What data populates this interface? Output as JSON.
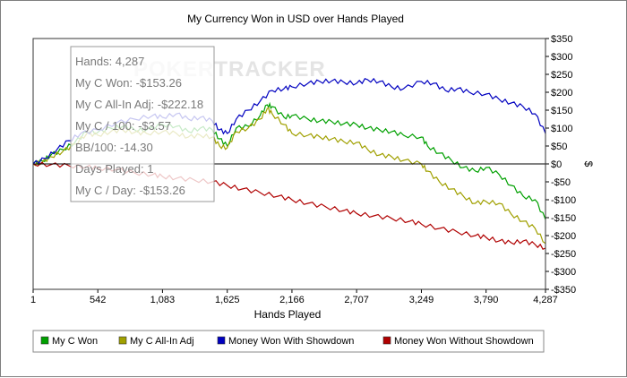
{
  "chart_data": {
    "type": "line",
    "title": "My Currency Won in USD over Hands Played",
    "xlabel": "Hands Played",
    "ylabel": "$",
    "xlim": [
      1,
      4287
    ],
    "ylim": [
      -350,
      350
    ],
    "x_ticks": [
      "1",
      "542",
      "1,083",
      "1,625",
      "2,166",
      "2,707",
      "3,249",
      "3,790",
      "4,287"
    ],
    "x_tick_values": [
      1,
      542,
      1083,
      1625,
      2166,
      2707,
      3249,
      3790,
      4287
    ],
    "y_ticks": [
      "$350",
      "$300",
      "$250",
      "$200",
      "$150",
      "$100",
      "$50",
      "$0",
      "-$50",
      "-$100",
      "-$150",
      "-$200",
      "-$250",
      "-$300",
      "-$350"
    ],
    "y_tick_values": [
      350,
      300,
      250,
      200,
      150,
      100,
      50,
      0,
      -50,
      -100,
      -150,
      -200,
      -250,
      -300,
      -350
    ],
    "grid": false,
    "legend_position": "bottom",
    "watermark": "POKERTRACKER",
    "series": [
      {
        "name": "My C Won",
        "color": "#00a000",
        "x": [
          1,
          80,
          150,
          250,
          350,
          450,
          542,
          650,
          750,
          850,
          950,
          1083,
          1200,
          1300,
          1400,
          1500,
          1560,
          1625,
          1700,
          1800,
          1900,
          1960,
          2000,
          2100,
          2166,
          2300,
          2400,
          2500,
          2600,
          2707,
          2800,
          2900,
          3000,
          3100,
          3249,
          3300,
          3400,
          3500,
          3600,
          3700,
          3790,
          3900,
          4000,
          4100,
          4200,
          4287
        ],
        "y": [
          0,
          8,
          25,
          40,
          60,
          90,
          88,
          100,
          105,
          95,
          95,
          110,
          105,
          90,
          100,
          95,
          70,
          50,
          100,
          105,
          135,
          165,
          160,
          130,
          135,
          125,
          120,
          118,
          112,
          110,
          100,
          95,
          90,
          80,
          75,
          50,
          30,
          10,
          -10,
          -20,
          -10,
          -30,
          -60,
          -90,
          -100,
          -155
        ]
      },
      {
        "name": "My C All-In Adj",
        "color": "#a0a000",
        "x": [
          1,
          80,
          150,
          250,
          350,
          450,
          542,
          650,
          750,
          850,
          950,
          1083,
          1200,
          1300,
          1400,
          1500,
          1560,
          1625,
          1700,
          1800,
          1900,
          1960,
          2000,
          2100,
          2166,
          2300,
          2400,
          2500,
          2600,
          2707,
          2800,
          2900,
          3000,
          3100,
          3249,
          3300,
          3400,
          3500,
          3600,
          3700,
          3790,
          3900,
          4000,
          4100,
          4200,
          4287
        ],
        "y": [
          0,
          5,
          20,
          35,
          55,
          85,
          80,
          90,
          95,
          88,
          85,
          90,
          85,
          75,
          80,
          75,
          50,
          45,
          90,
          100,
          125,
          155,
          140,
          110,
          85,
          80,
          75,
          70,
          62,
          60,
          40,
          25,
          20,
          10,
          0,
          -20,
          -50,
          -70,
          -90,
          -110,
          -105,
          -110,
          -140,
          -160,
          -180,
          -222
        ]
      },
      {
        "name": "Money Won With Showdown",
        "color": "#0000c0",
        "x": [
          1,
          100,
          200,
          300,
          400,
          542,
          700,
          850,
          1000,
          1083,
          1200,
          1300,
          1400,
          1500,
          1560,
          1625,
          1700,
          1800,
          1900,
          2000,
          2100,
          2166,
          2300,
          2400,
          2500,
          2600,
          2707,
          2800,
          2900,
          3000,
          3100,
          3249,
          3350,
          3450,
          3550,
          3650,
          3790,
          3900,
          4000,
          4100,
          4200,
          4287
        ],
        "y": [
          0,
          15,
          40,
          65,
          85,
          95,
          115,
          125,
          135,
          130,
          140,
          125,
          130,
          120,
          95,
          85,
          125,
          150,
          175,
          205,
          210,
          215,
          225,
          230,
          232,
          228,
          225,
          235,
          230,
          215,
          210,
          230,
          225,
          205,
          210,
          200,
          195,
          180,
          170,
          160,
          140,
          85
        ]
      },
      {
        "name": "Money Won Without Showdown",
        "color": "#b00000",
        "x": [
          1,
          150,
          300,
          450,
          542,
          700,
          850,
          1000,
          1083,
          1200,
          1350,
          1500,
          1625,
          1750,
          1900,
          2050,
          2166,
          2300,
          2450,
          2600,
          2707,
          2850,
          3000,
          3150,
          3249,
          3400,
          3550,
          3700,
          3790,
          3900,
          4000,
          4100,
          4200,
          4287
        ],
        "y": [
          0,
          -2,
          -5,
          -8,
          -12,
          -15,
          -25,
          -30,
          -35,
          -40,
          -45,
          -50,
          -60,
          -70,
          -80,
          -90,
          -100,
          -110,
          -120,
          -130,
          -138,
          -145,
          -152,
          -160,
          -168,
          -180,
          -190,
          -200,
          -205,
          -215,
          -220,
          -215,
          -225,
          -235
        ]
      }
    ]
  },
  "tooltip": {
    "lines": [
      "Hands: 4,287",
      "My C Won: -$153.26",
      "My C All-In Adj: -$222.18",
      "My C / 100: -$3.57",
      "BB/100: -14.30",
      "Days Played: 1",
      "My C / Day: -$153.26"
    ]
  }
}
